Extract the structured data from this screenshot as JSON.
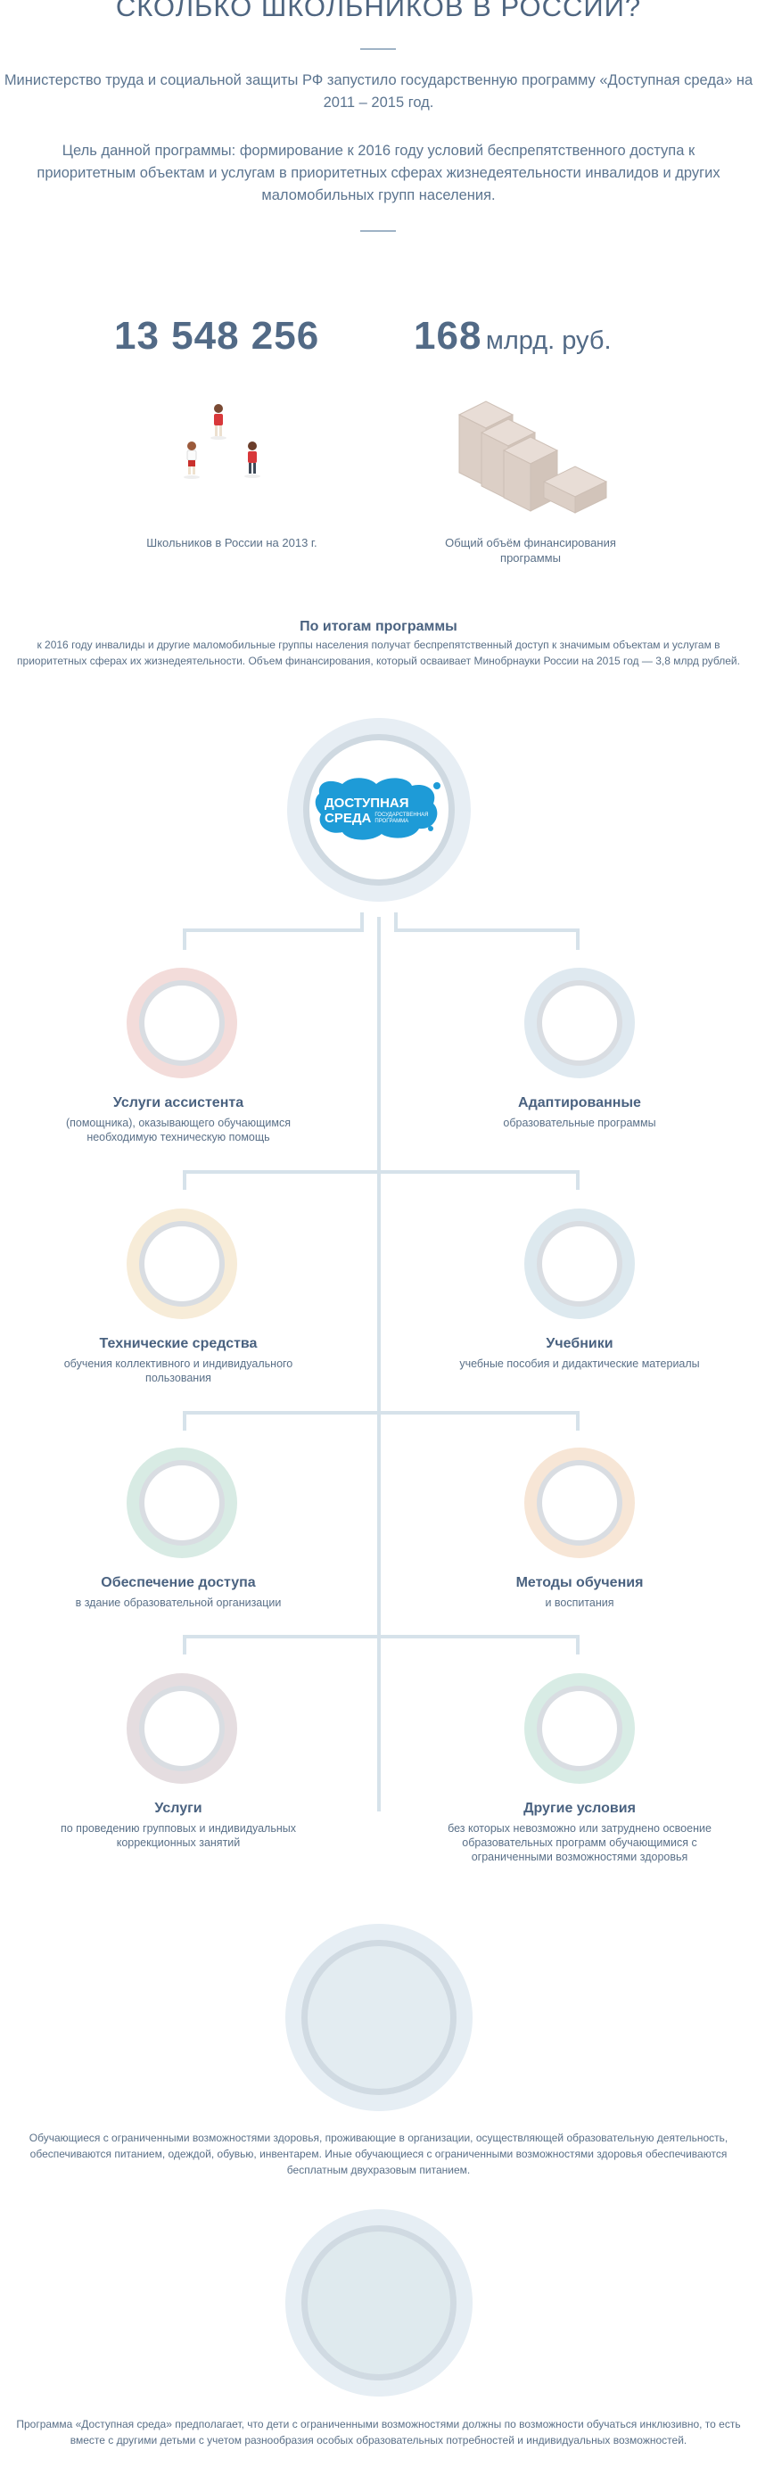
{
  "header": {
    "title": "СКОЛЬКО ШКОЛЬНИКОВ В РОССИИ?",
    "intro1": "Министерство труда и социальной защиты РФ запустило государственную программу «Доступная среда» на 2011 – 2015 год.",
    "intro2": "Цель данной программы: формирование к 2016 году условий беспрепятственного доступа к приоритетным объектам и услугам в приоритетных сферах жизнедеятельности инвалидов и других маломобильных групп населения."
  },
  "stats": {
    "students": {
      "value": "13 548 256",
      "caption": "Школьников в России на 2013 г."
    },
    "funding": {
      "value": "168",
      "unit": "млрд. руб.",
      "caption": "Общий объём финансирования программы"
    }
  },
  "results": {
    "title": "По итогам программы",
    "text": "к 2016 году инвалиды и другие маломобильные группы населения получат беспрепятственный доступ к значимым объектам и услугам в приоритетных сферах их жизнедеятельности. Объем финансирования, который осваивает Минобрнауки России на 2015 год — 3,8 млрд рублей."
  },
  "logo": {
    "line1": "ДОСТУПНАЯ",
    "line2": "СРЕДА",
    "sub1": "ГОСУДАРСТВЕННАЯ",
    "sub2": "ПРОГРАММА"
  },
  "items": [
    {
      "title": "Услуги ассистента",
      "desc": "(помощника), оказывающего обучающимся необходимую техническую помощь",
      "color": "#f3dcda"
    },
    {
      "title": "Адаптированные",
      "desc": "образовательные программы",
      "color": "#dfe9f0"
    },
    {
      "title": "Технические средства",
      "desc": "обучения коллективного и индивидуального пользования",
      "color": "#f7ecd8"
    },
    {
      "title": "Учебники",
      "desc": "учебные пособия и дидактические материалы",
      "color": "#dde9ef"
    },
    {
      "title": "Обеспечение доступа",
      "desc": "в здание образовательной организации",
      "color": "#d8ebe4"
    },
    {
      "title": "Методы обучения",
      "desc": "и воспитания",
      "color": "#f7e6d6"
    },
    {
      "title": "Услуги",
      "desc": "по проведению групповых и индивидуальных коррекционных занятий",
      "color": "#e5dde0"
    },
    {
      "title": "Другие условия",
      "desc": "без которых невозможно или затруднено освоение образовательных программ обучающимися с ограниченными возможностями здоровья",
      "color": "#d8ece5"
    }
  ],
  "bottom": {
    "text1": "Обучающиеся с ограниченными возможностями здоровья, проживающие в организации, осуществляющей образовательную деятельность, обеспечиваются питанием, одеждой, обувью, инвентарем. Иные обучающиеся с ограниченными возможностями здоровья обеспечиваются бесплатным двухразовым питанием.",
    "text2": "Программа «Доступная среда» предполагает, что дети с ограниченными возможностями должны по возможности обучаться инклюзивно, то есть вместе с другими детьми с учетом разнообразия особых образовательных потребностей и индивидуальных возможностей."
  },
  "colors": {
    "accent": "#526a86",
    "logo_blue": "#1e9bd7",
    "line": "#d6e2ea"
  }
}
